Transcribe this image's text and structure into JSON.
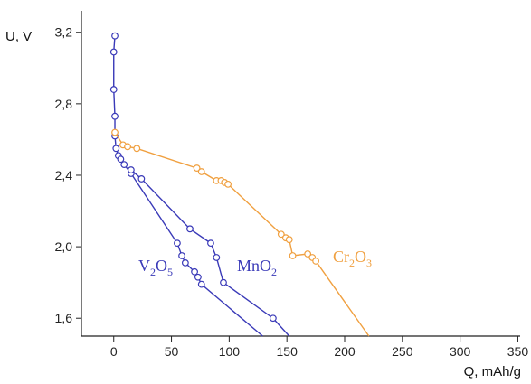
{
  "chart_data": {
    "type": "line",
    "title": "",
    "xlabel": "Q, mAh/g",
    "ylabel": "U, V",
    "xlim": [
      -28,
      352
    ],
    "ylim": [
      1.5,
      3.32
    ],
    "xticks": [
      0,
      50,
      100,
      150,
      200,
      250,
      300,
      350
    ],
    "yticks": [
      1.6,
      2.0,
      2.4,
      2.8,
      3.2
    ],
    "xtick_labels": [
      "0",
      "50",
      "100",
      "150",
      "200",
      "250",
      "300",
      "350"
    ],
    "ytick_labels": [
      "1,6",
      "2,0",
      "2,4",
      "2,8",
      "3,2"
    ],
    "grid": false,
    "series": [
      {
        "label_base": "V",
        "label_sub1": "2",
        "label_mid": "O",
        "label_sub2": "5",
        "color": "#3a3ab8",
        "points": [
          [
            1,
            3.18
          ],
          [
            0,
            3.09
          ],
          [
            0,
            2.88
          ],
          [
            1,
            2.73
          ],
          [
            1,
            2.62
          ],
          [
            2,
            2.55
          ],
          [
            4,
            2.51
          ],
          [
            6,
            2.49
          ],
          [
            9,
            2.46
          ],
          [
            15,
            2.41
          ],
          [
            55,
            2.02
          ],
          [
            59,
            1.95
          ],
          [
            62,
            1.91
          ],
          [
            70,
            1.86
          ],
          [
            73,
            1.83
          ],
          [
            76,
            1.79
          ],
          [
            129,
            1.5
          ]
        ]
      },
      {
        "label_base": "MnO",
        "label_sub1": "2",
        "color": "#3a3ab8",
        "points": [
          [
            15,
            2.43
          ],
          [
            24,
            2.38
          ],
          [
            66,
            2.1
          ],
          [
            84,
            2.02
          ],
          [
            89,
            1.94
          ],
          [
            95,
            1.8
          ],
          [
            138,
            1.6
          ],
          [
            152,
            1.5
          ]
        ]
      },
      {
        "label_base": "Cr",
        "label_sub1": "2",
        "label_mid": "O",
        "label_sub2": "3",
        "color": "#f0a040",
        "points": [
          [
            1,
            2.64
          ],
          [
            8,
            2.57
          ],
          [
            12,
            2.56
          ],
          [
            20,
            2.55
          ],
          [
            72,
            2.44
          ],
          [
            76,
            2.42
          ],
          [
            89,
            2.37
          ],
          [
            93,
            2.37
          ],
          [
            96,
            2.36
          ],
          [
            99,
            2.35
          ],
          [
            145,
            2.07
          ],
          [
            149,
            2.05
          ],
          [
            152,
            2.04
          ],
          [
            155,
            1.95
          ],
          [
            168,
            1.96
          ],
          [
            172,
            1.94
          ],
          [
            175,
            1.92
          ],
          [
            221,
            1.5
          ]
        ]
      }
    ]
  }
}
